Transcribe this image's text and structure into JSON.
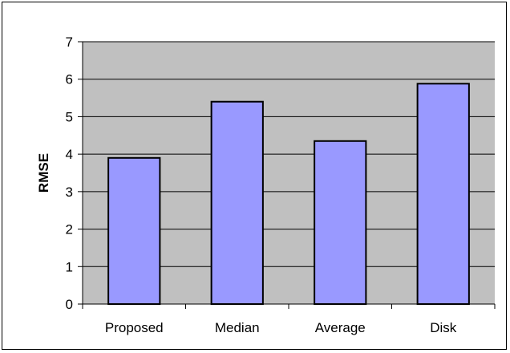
{
  "chart_data": {
    "type": "bar",
    "title": "",
    "xlabel": "",
    "ylabel": "RMSE",
    "categories": [
      "Proposed",
      "Median",
      "Average",
      "Disk"
    ],
    "values": [
      3.9,
      5.4,
      4.35,
      5.88
    ],
    "ylim": [
      0,
      7
    ],
    "yticks": [
      "0",
      "1",
      "2",
      "3",
      "4",
      "5",
      "6",
      "7"
    ],
    "grid": true,
    "legend": "none",
    "colors": {
      "plot_background": "#c0c0c0",
      "bar_fill": "#9999ff",
      "bar_stroke": "#000000",
      "gridline": "#000000"
    }
  }
}
